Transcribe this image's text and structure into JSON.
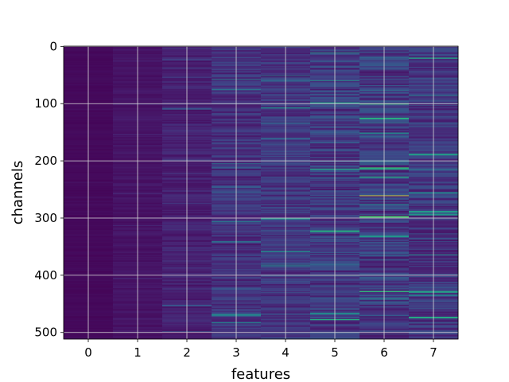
{
  "chart_data": {
    "type": "heatmap",
    "title": "",
    "xlabel": "features",
    "ylabel": "channels",
    "x_categories": [
      0,
      1,
      2,
      3,
      4,
      5,
      6,
      7
    ],
    "x_ticks": [
      "0",
      "1",
      "2",
      "3",
      "4",
      "5",
      "6",
      "7"
    ],
    "y_ticks": [
      "0",
      "100",
      "200",
      "300",
      "400",
      "500"
    ],
    "y_range": [
      0,
      511
    ],
    "y_inverted": true,
    "rows": 512,
    "colormap": "viridis",
    "grid": true,
    "colors": {
      "background": "#440154",
      "low": "#433a84",
      "mid": "#26828e",
      "high": "#6ece58",
      "max": "#fde725",
      "grid": "#d9d9d9"
    },
    "feature_mean_intensity": [
      0.03,
      0.07,
      0.12,
      0.18,
      0.2,
      0.22,
      0.22,
      0.2
    ],
    "feature_spread": [
      0.02,
      0.04,
      0.08,
      0.13,
      0.14,
      0.18,
      0.2,
      0.16
    ],
    "bright_cells": [
      {
        "feature": 6,
        "channel": 261,
        "value": 1.0
      },
      {
        "feature": 5,
        "channel": 400,
        "value": 0.75
      },
      {
        "feature": 5,
        "channel": 60,
        "value": 0.55
      },
      {
        "feature": 6,
        "channel": 215,
        "value": 0.6
      },
      {
        "feature": 7,
        "channel": 190,
        "value": 0.55
      },
      {
        "feature": 7,
        "channel": 475,
        "value": 0.6
      },
      {
        "feature": 4,
        "channel": 108,
        "value": 0.5
      },
      {
        "feature": 6,
        "channel": 276,
        "value": 0.5
      }
    ]
  }
}
